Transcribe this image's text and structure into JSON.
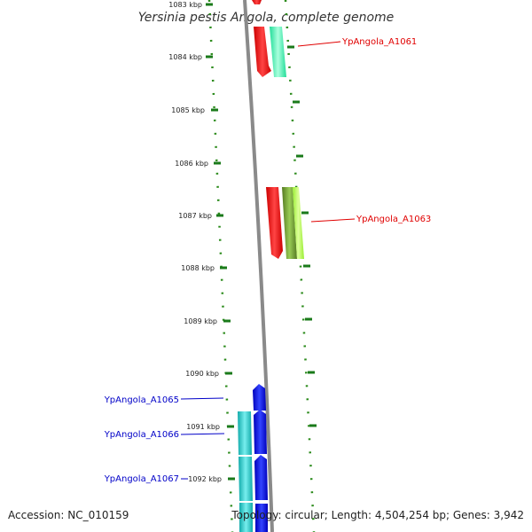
{
  "title": "Yersinia pestis Angola, complete genome",
  "scale_ticks": [
    "1083 kbp",
    "1084 kbp",
    "1085 kbp",
    "1086 kbp",
    "1087 kbp",
    "1088 kbp",
    "1089 kbp",
    "1090 kbp",
    "1091 kbp",
    "1092 kbp"
  ],
  "gene_labels": [
    {
      "text": "YpAngola_A1061",
      "color": "#e00000"
    },
    {
      "text": "YpAngola_A1063",
      "color": "#e00000"
    },
    {
      "text": "YpAngola_A1065",
      "color": "#0000c8"
    },
    {
      "text": "YpAngola_A1066",
      "color": "#0000c8"
    },
    {
      "text": "YpAngola_A1067",
      "color": "#0000c8"
    }
  ],
  "footer": {
    "accession": "Accession: NC_010159",
    "summary": "Topology: circular; Length: 4,504,254 bp; Genes: 3,942"
  },
  "colors": {
    "backbone": "#8a8a8a",
    "dotted_ring": "#2a8a1a",
    "red_gene": "#ff0000",
    "teal_gene": "#33ffaa",
    "green_gene": "#6a9a2a",
    "lime_gene": "#aaff44",
    "blue_gene": "#0000dd",
    "cyan_gene": "#22c8c8"
  }
}
